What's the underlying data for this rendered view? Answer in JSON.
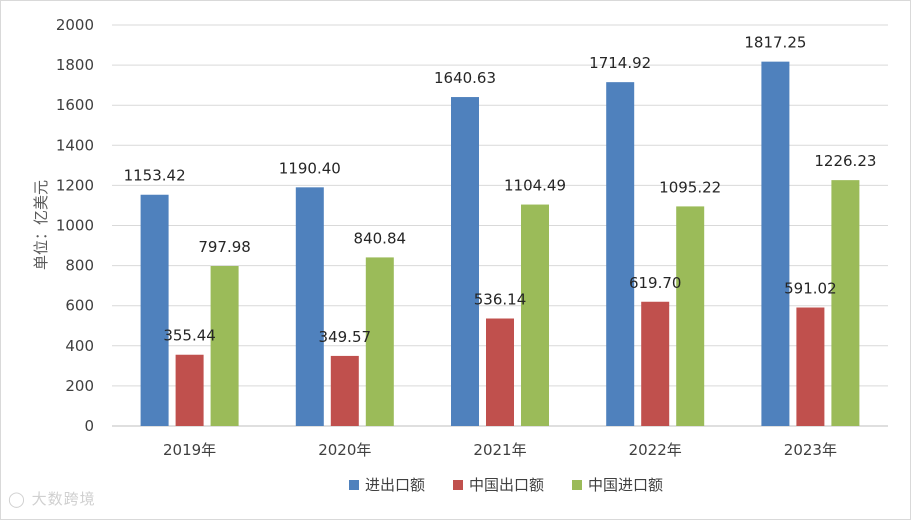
{
  "chart_data": {
    "type": "bar",
    "categories": [
      "2019年",
      "2020年",
      "2021年",
      "2022年",
      "2023年"
    ],
    "series": [
      {
        "name": "进出口额",
        "color": "#4f81bd",
        "values": [
          1153.42,
          1190.4,
          1640.63,
          1714.92,
          1817.25
        ]
      },
      {
        "name": "中国出口额",
        "color": "#c0504d",
        "values": [
          355.44,
          349.57,
          536.14,
          619.7,
          591.02
        ]
      },
      {
        "name": "中国进口额",
        "color": "#9bbb59",
        "values": [
          797.98,
          840.84,
          1104.49,
          1095.22,
          1226.23
        ]
      }
    ],
    "data_labels": [
      [
        "1153.42",
        "1190.40",
        "1640.63",
        "1714.92",
        "1817.25"
      ],
      [
        "355.44",
        "349.57",
        "536.14",
        "619.70",
        "591.02"
      ],
      [
        "797.98",
        "840.84",
        "1104.49",
        "1095.22",
        "1226.23"
      ]
    ],
    "ylabel": "单位：亿美元",
    "ylim": [
      0,
      2000
    ],
    "yticks": [
      0,
      200,
      400,
      600,
      800,
      1000,
      1200,
      1400,
      1600,
      1800,
      2000
    ],
    "grid": true,
    "legend_position": "bottom"
  },
  "watermark": "大数跨境"
}
